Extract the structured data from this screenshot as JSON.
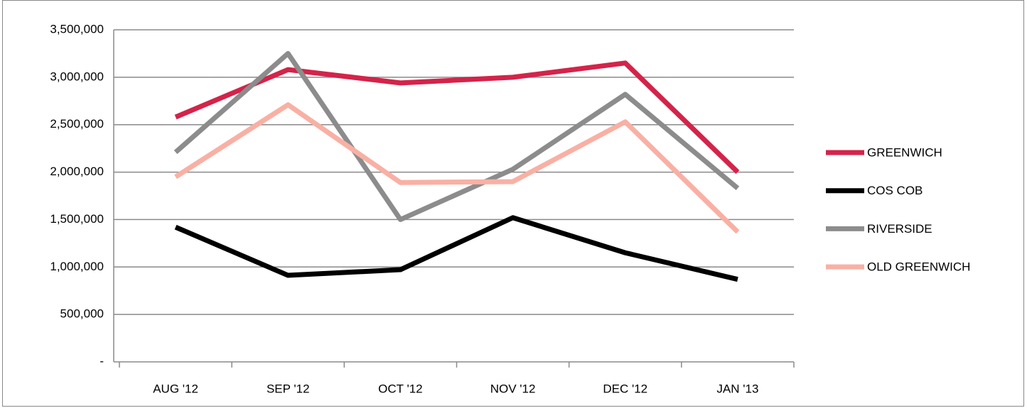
{
  "chart_data": {
    "type": "line",
    "categories": [
      "AUG '12",
      "SEP '12",
      "OCT '12",
      "NOV '12",
      "DEC '12",
      "JAN '13"
    ],
    "series": [
      {
        "name": "GREENWICH",
        "color": "#d4234a",
        "values": [
          2580000,
          3080000,
          2940000,
          3000000,
          3150000,
          2000000
        ]
      },
      {
        "name": "COS COB",
        "color": "#000000",
        "values": [
          1420000,
          912000,
          972000,
          1520000,
          1150000,
          870000
        ]
      },
      {
        "name": "RIVERSIDE",
        "color": "#8c8c8c",
        "values": [
          2210000,
          3250000,
          1500000,
          2030000,
          2820000,
          1830000
        ]
      },
      {
        "name": "OLD GREENWICH",
        "color": "#f9b0a4",
        "values": [
          1950000,
          2710000,
          1890000,
          1900000,
          2530000,
          1370000
        ]
      }
    ],
    "ylim": [
      0,
      3500000
    ],
    "yticks": [
      {
        "value": 0,
        "label": "-"
      },
      {
        "value": 500000,
        "label": "500,000"
      },
      {
        "value": 1000000,
        "label": "1,000,000"
      },
      {
        "value": 1500000,
        "label": "1,500,000"
      },
      {
        "value": 2000000,
        "label": "2,000,000"
      },
      {
        "value": 2500000,
        "label": "2,500,000"
      },
      {
        "value": 3000000,
        "label": "3,000,000"
      },
      {
        "value": 3500000,
        "label": "3,500,000"
      }
    ],
    "grid": true,
    "legend": "right"
  }
}
